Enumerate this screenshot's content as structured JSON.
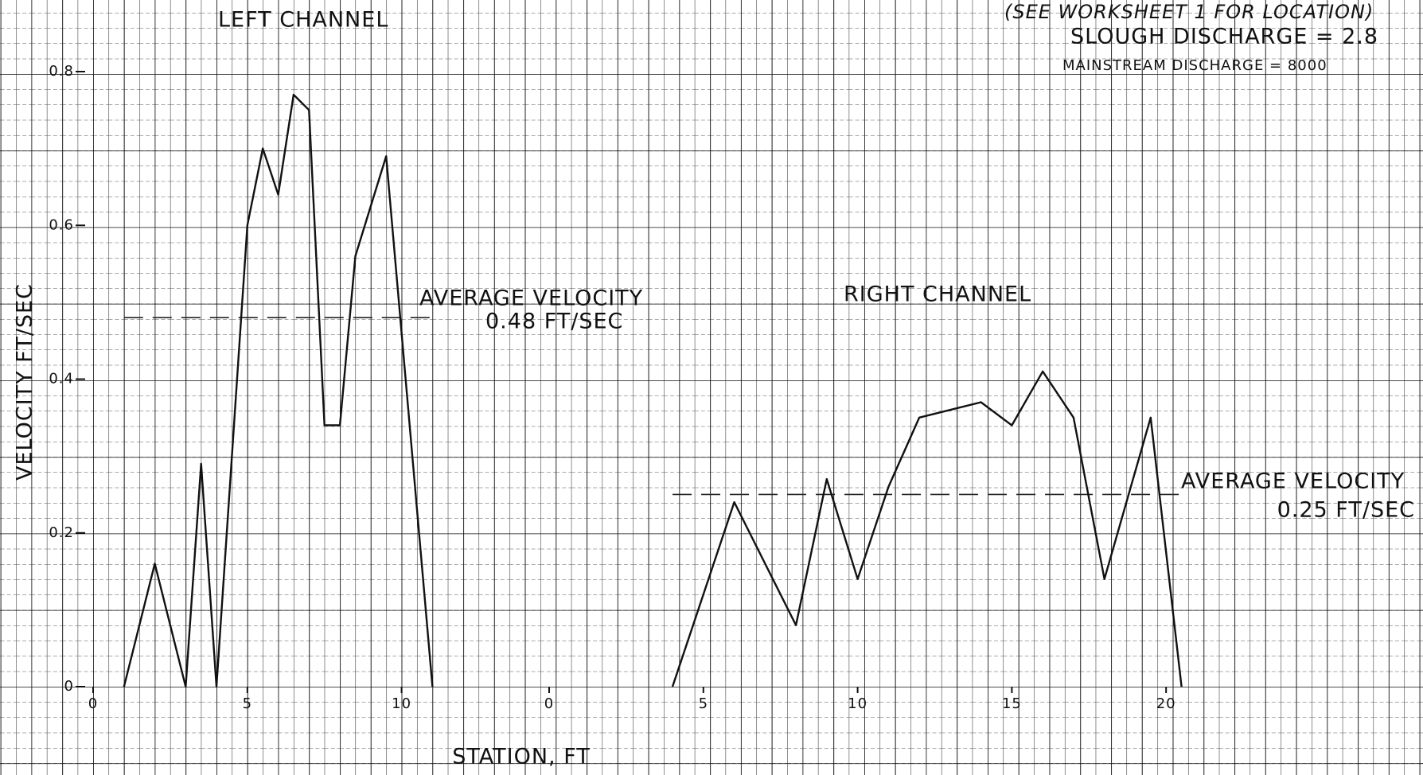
{
  "chart_data": [
    {
      "type": "line",
      "title": "LEFT CHANNEL",
      "ylabel": "VELOCITY FT/SEC",
      "xlabel": "STATION, FT",
      "x": [
        1,
        2,
        3,
        3.5,
        4,
        5,
        5.5,
        6,
        6.5,
        7,
        7.5,
        8,
        8.5,
        9.5,
        11
      ],
      "values": [
        0,
        0.16,
        0,
        0.29,
        0,
        0.6,
        0.7,
        0.64,
        0.77,
        0.75,
        0.34,
        0.34,
        0.56,
        0.69,
        0
      ],
      "color": "#111111",
      "xlim": [
        0,
        14
      ],
      "xticks": [
        0,
        5,
        10
      ],
      "ylim": [
        0,
        0.8
      ],
      "yticks": [
        0,
        0.2,
        0.4,
        0.6,
        0.8
      ],
      "average": {
        "value": 0.48,
        "label": "AVERAGE VELOCITY",
        "value_label": "0.48 FT/SEC"
      }
    },
    {
      "type": "line",
      "title": "RIGHT CHANNEL",
      "x": [
        4,
        6,
        8,
        9,
        10,
        11,
        12,
        14,
        15,
        16,
        17,
        18,
        19.5,
        20.5
      ],
      "values": [
        0,
        0.24,
        0.08,
        0.27,
        0.14,
        0.26,
        0.35,
        0.37,
        0.34,
        0.41,
        0.35,
        0.14,
        0.35,
        0
      ],
      "color": "#111111",
      "xlim": [
        0,
        28
      ],
      "xticks": [
        0,
        5,
        10,
        15,
        20
      ],
      "ylim": [
        0,
        0.8
      ],
      "average": {
        "value": 0.25,
        "label": "AVERAGE VELOCITY",
        "value_label": "0.25 FT/SEC"
      },
      "notes": [
        "(SEE WORKSHEET 1 FOR LOCATION)",
        "SLOUGH DISCHARGE = 2.8",
        "MAINSTREAM DISCHARGE = 8000"
      ]
    }
  ]
}
